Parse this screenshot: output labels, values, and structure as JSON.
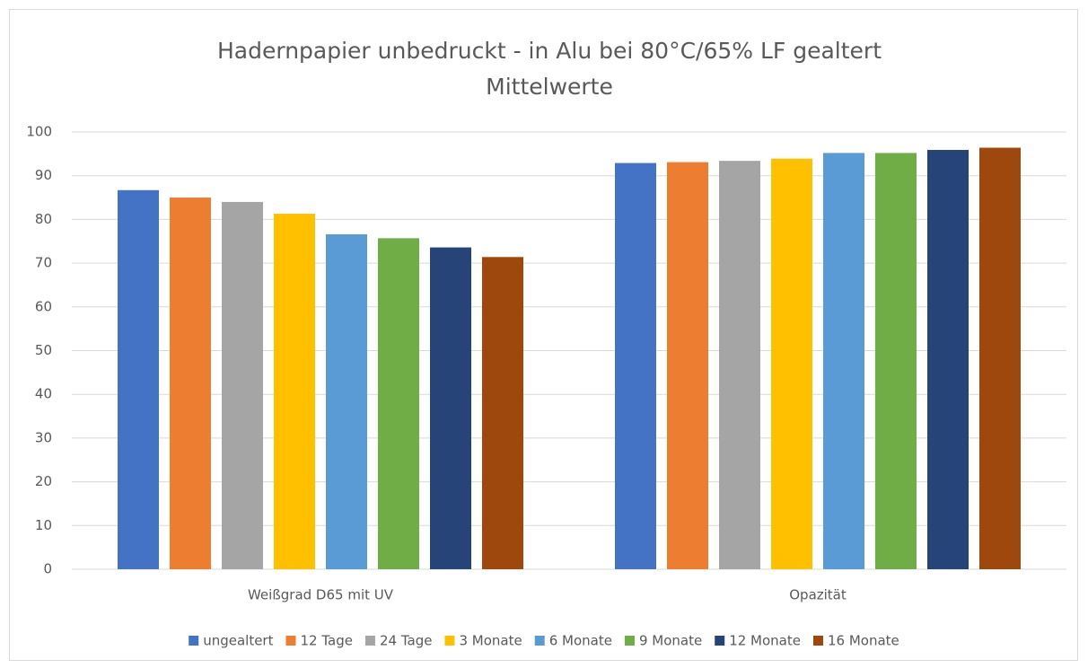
{
  "chart_data": {
    "type": "bar",
    "title": "Hadernpapier unbedruckt - in Alu bei 80°C/65% LF gealtert",
    "subtitle": "Mittelwerte",
    "categories": [
      "Weißgrad D65 mit UV",
      "Opazität"
    ],
    "series": [
      {
        "name": "ungealtert",
        "color": "#4472c4",
        "values": [
          86.7,
          92.9
        ]
      },
      {
        "name": "12 Tage",
        "color": "#ed7d31",
        "values": [
          85.0,
          93.1
        ]
      },
      {
        "name": "24 Tage",
        "color": "#a5a5a5",
        "values": [
          84.0,
          93.4
        ]
      },
      {
        "name": "3 Monate",
        "color": "#ffc000",
        "values": [
          81.3,
          93.9
        ]
      },
      {
        "name": "6 Monate",
        "color": "#5b9bd5",
        "values": [
          76.6,
          95.2
        ]
      },
      {
        "name": "9 Monate",
        "color": "#70ad47",
        "values": [
          75.7,
          95.2
        ]
      },
      {
        "name": "12 Monate",
        "color": "#264478",
        "values": [
          73.6,
          95.9
        ]
      },
      {
        "name": "16 Monate",
        "color": "#9e480e",
        "values": [
          71.4,
          96.4
        ]
      }
    ],
    "ylim": [
      0,
      100
    ],
    "yticks": [
      0,
      10,
      20,
      30,
      40,
      50,
      60,
      70,
      80,
      90,
      100
    ],
    "grid": true,
    "legend": "bottom"
  }
}
